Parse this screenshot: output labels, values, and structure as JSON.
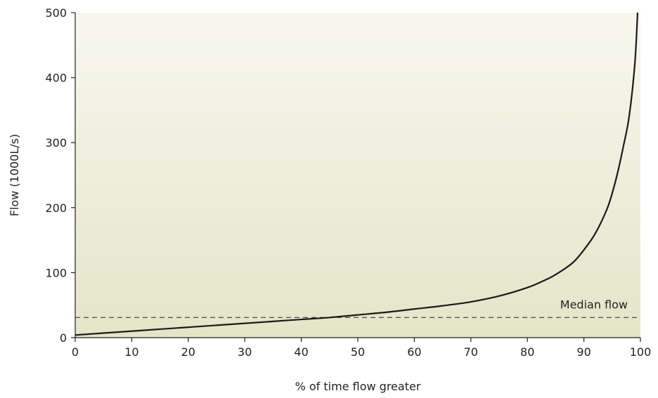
{
  "chart_data": {
    "type": "line",
    "title": "",
    "xlabel": "% of time flow greater",
    "ylabel": "Flow (1000L/s)",
    "xlim": [
      0,
      100
    ],
    "ylim": [
      0,
      500
    ],
    "x_ticks": [
      0,
      10,
      20,
      30,
      40,
      50,
      60,
      70,
      80,
      90,
      100
    ],
    "y_ticks": [
      0,
      100,
      200,
      300,
      400,
      500
    ],
    "grid": false,
    "legend": "none",
    "series": [
      {
        "x": [
          0,
          5,
          10,
          15,
          20,
          25,
          30,
          35,
          40,
          45,
          50,
          55,
          60,
          65,
          70,
          75,
          80,
          83,
          85,
          88,
          90,
          92,
          94,
          95,
          96,
          97,
          98,
          99,
          99.5
        ],
        "y": [
          4,
          7,
          10,
          13,
          16,
          19,
          22,
          25,
          28,
          31,
          35,
          39,
          44,
          49,
          55,
          64,
          77,
          88,
          97,
          115,
          135,
          160,
          196,
          222,
          255,
          295,
          340,
          420,
          500
        ]
      }
    ],
    "reference_lines": [
      {
        "axis": "y",
        "value": 31,
        "style": "dashed",
        "label": "Median flow"
      }
    ],
    "colors": {
      "line": "#1a1a1a",
      "bg_top": "#f7f7ef",
      "bg_bottom": "#e4e5c8"
    }
  }
}
